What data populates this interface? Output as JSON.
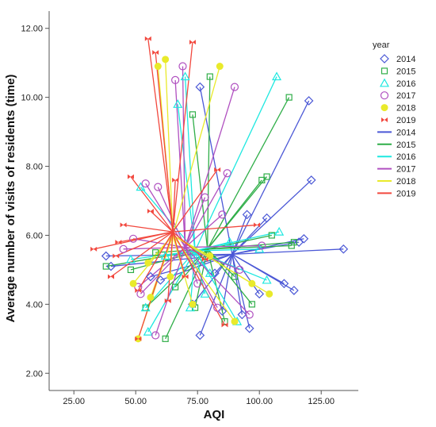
{
  "chart_data": {
    "type": "scatter",
    "xlabel": "AQI",
    "ylabel": "Average number of visits of residents (time)",
    "xlim": [
      15,
      140
    ],
    "ylim": [
      1.5,
      12.5
    ],
    "xticks": [
      "25.00",
      "50.00",
      "75.00",
      "100.00",
      "125.00"
    ],
    "xtick_values": [
      25,
      50,
      75,
      100,
      125
    ],
    "yticks": [
      "2.00",
      "4.00",
      "6.00",
      "8.00",
      "10.00",
      "12.00"
    ],
    "ytick_values": [
      2,
      4,
      6,
      8,
      10,
      12
    ],
    "grid": false,
    "legend_placement": "right",
    "legend_title": "year",
    "legend_entries": [
      "2014",
      "2015",
      "2016",
      "2017",
      "2018",
      "2019",
      "2014",
      "2015",
      "2016",
      "2017",
      "2018",
      "2019"
    ],
    "series": [
      {
        "name": "2014",
        "color": "#4b58d6",
        "marker": "diamond",
        "centroid": [
          89,
          5.45
        ],
        "points": [
          [
            76,
            10.3
          ],
          [
            120,
            9.9
          ],
          [
            121,
            7.6
          ],
          [
            95,
            6.6
          ],
          [
            103,
            6.5
          ],
          [
            118,
            5.9
          ],
          [
            116,
            5.8
          ],
          [
            134,
            5.6
          ],
          [
            38,
            5.4
          ],
          [
            40,
            5.1
          ],
          [
            60,
            4.7
          ],
          [
            110,
            4.6
          ],
          [
            114,
            4.4
          ],
          [
            100,
            4.3
          ],
          [
            73,
            4.0
          ],
          [
            85,
            3.8
          ],
          [
            93,
            3.7
          ],
          [
            96,
            3.3
          ],
          [
            76,
            3.1
          ],
          [
            56,
            4.8
          ],
          [
            82,
            4.9
          ]
        ]
      },
      {
        "name": "2015",
        "color": "#2fae48",
        "marker": "square",
        "centroid": [
          79,
          5.6
        ],
        "points": [
          [
            112,
            10.0
          ],
          [
            80,
            10.6
          ],
          [
            73,
            9.5
          ],
          [
            103,
            7.7
          ],
          [
            101,
            7.6
          ],
          [
            114,
            5.8
          ],
          [
            113,
            5.7
          ],
          [
            38,
            5.1
          ],
          [
            48,
            5.0
          ],
          [
            54,
            3.9
          ],
          [
            62,
            3.0
          ],
          [
            74,
            3.9
          ],
          [
            86,
            3.5
          ],
          [
            97,
            4.0
          ],
          [
            58,
            5.5
          ],
          [
            66,
            4.5
          ],
          [
            90,
            4.8
          ],
          [
            105,
            6.0
          ]
        ]
      },
      {
        "name": "2016",
        "color": "#1ee8e0",
        "marker": "triangle",
        "centroid": [
          74,
          5.55
        ],
        "points": [
          [
            107,
            10.6
          ],
          [
            70,
            10.6
          ],
          [
            67,
            9.8
          ],
          [
            52,
            7.4
          ],
          [
            108,
            6.1
          ],
          [
            55,
            3.2
          ],
          [
            54,
            3.9
          ],
          [
            72,
            3.9
          ],
          [
            91,
            3.5
          ],
          [
            78,
            4.3
          ],
          [
            80,
            4.9
          ],
          [
            100,
            5.6
          ],
          [
            103,
            4.7
          ],
          [
            62,
            5.4
          ],
          [
            48,
            5.3
          ],
          [
            88,
            5.8
          ]
        ]
      },
      {
        "name": "2017",
        "color": "#b050c0",
        "marker": "circle",
        "centroid": [
          70,
          5.65
        ],
        "points": [
          [
            69,
            10.9
          ],
          [
            66,
            10.5
          ],
          [
            90,
            10.3
          ],
          [
            87,
            7.8
          ],
          [
            59,
            7.4
          ],
          [
            54,
            7.5
          ],
          [
            78,
            7.1
          ],
          [
            96,
            3.7
          ],
          [
            58,
            3.1
          ],
          [
            52,
            4.3
          ],
          [
            51,
            4.5
          ],
          [
            83,
            3.9
          ],
          [
            75,
            4.6
          ],
          [
            92,
            5.0
          ],
          [
            45,
            5.6
          ],
          [
            101,
            5.7
          ],
          [
            49,
            5.9
          ],
          [
            85,
            6.6
          ]
        ]
      },
      {
        "name": "2018",
        "color": "#e9ea2b",
        "marker": "circle-filled",
        "centroid": [
          65,
          6.0
        ],
        "points": [
          [
            62,
            11.1
          ],
          [
            59,
            10.9
          ],
          [
            84,
            10.9
          ],
          [
            56,
            4.2
          ],
          [
            51,
            3.0
          ],
          [
            49,
            4.6
          ],
          [
            90,
            3.5
          ],
          [
            104,
            4.3
          ],
          [
            73,
            4.0
          ],
          [
            55,
            5.2
          ],
          [
            80,
            5.4
          ],
          [
            64,
            4.8
          ],
          [
            97,
            4.6
          ]
        ]
      },
      {
        "name": "2019",
        "color": "#f2483e",
        "marker": "bowtie",
        "centroid": [
          65,
          6.1
        ],
        "points": [
          [
            55,
            11.7
          ],
          [
            73,
            11.6
          ],
          [
            58,
            11.3
          ],
          [
            83,
            7.9
          ],
          [
            48,
            7.7
          ],
          [
            66,
            7.6
          ],
          [
            56,
            6.7
          ],
          [
            99,
            6.3
          ],
          [
            45,
            6.3
          ],
          [
            33,
            5.6
          ],
          [
            43,
            5.8
          ],
          [
            42,
            5.4
          ],
          [
            40,
            4.8
          ],
          [
            51,
            4.4
          ],
          [
            63,
            4.1
          ],
          [
            86,
            3.4
          ],
          [
            51,
            3.0
          ],
          [
            70,
            4.8
          ],
          [
            78,
            5.3
          ]
        ]
      }
    ]
  }
}
